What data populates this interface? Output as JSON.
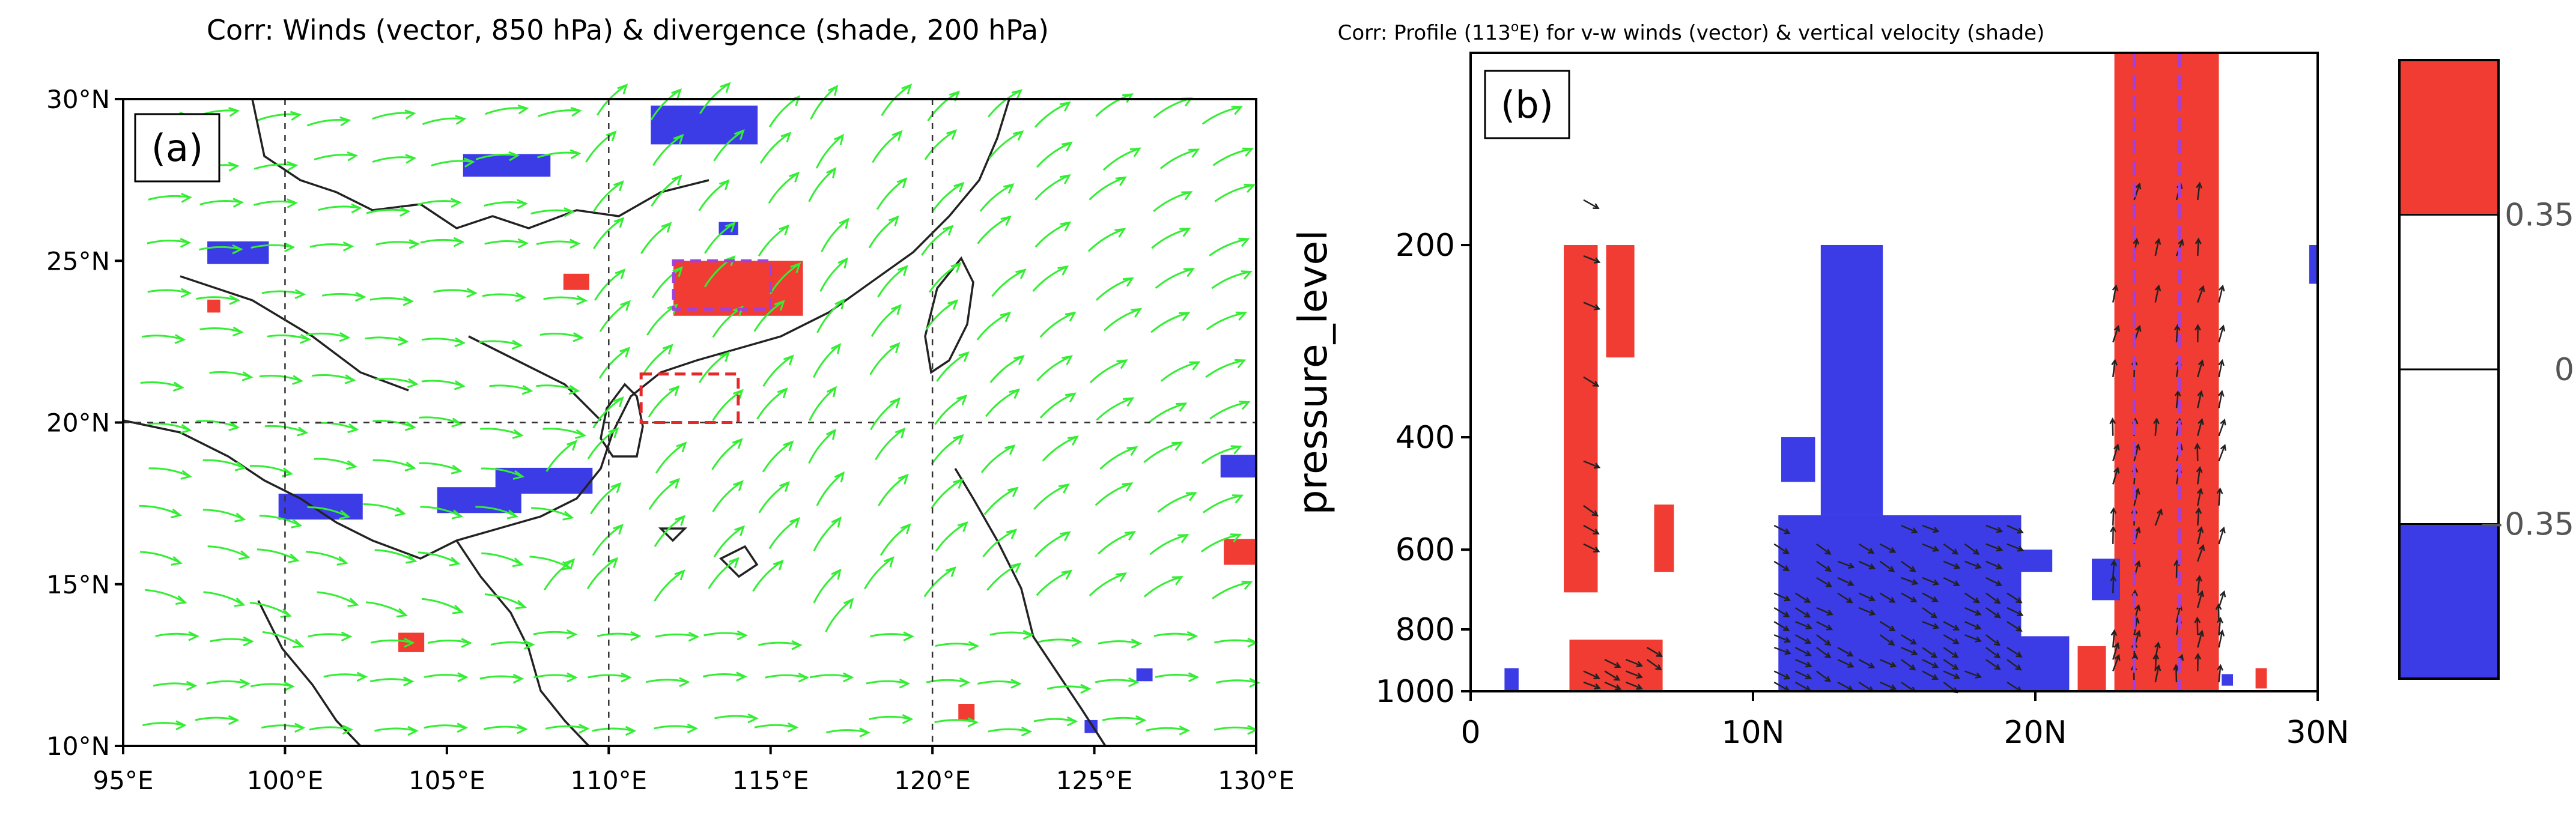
{
  "chart_data": [
    {
      "type": "heatmap",
      "subtype": "map-streamline-overlay",
      "panel_label": "(a)",
      "title": "Corr: Winds (vector, 850 hPa) & divergence (shade, 200 hPa)",
      "x_ticks": [
        "95°E",
        "100°E",
        "105°E",
        "110°E",
        "115°E",
        "120°E",
        "125°E",
        "130°E"
      ],
      "y_ticks": [
        "30°N",
        "25°N",
        "20°N",
        "15°N",
        "10°N"
      ],
      "xlim": [
        95,
        130
      ],
      "ylim": [
        10,
        30
      ],
      "grid_lon": [
        100,
        110,
        120
      ],
      "grid_lat": [
        20
      ],
      "colors": {
        "positive": "#f03c32",
        "negative": "#3c3ce6",
        "streamline": "#33ee33",
        "box_dashed_red": "#e62828",
        "box_dashed_purple": "#a040e0"
      },
      "boxes": [
        {
          "name": "purple-box",
          "lon": [
            112,
            115
          ],
          "lat": [
            23.5,
            25
          ]
        },
        {
          "name": "red-box",
          "lon": [
            111,
            114
          ],
          "lat": [
            20,
            21.5
          ]
        }
      ],
      "positive_patches": [
        {
          "lon": [
            112,
            116
          ],
          "lat": [
            23.3,
            25.0
          ]
        },
        {
          "lon": [
            108.6,
            109.4
          ],
          "lat": [
            24.1,
            24.6
          ]
        },
        {
          "lon": [
            129.0,
            130.0
          ],
          "lat": [
            15.6,
            16.4
          ]
        },
        {
          "lon": [
            103.5,
            104.3
          ],
          "lat": [
            12.9,
            13.5
          ]
        },
        {
          "lon": [
            120.8,
            121.3
          ],
          "lat": [
            10.8,
            11.3
          ]
        },
        {
          "lon": [
            97.6,
            98.0
          ],
          "lat": [
            23.4,
            23.8
          ]
        }
      ],
      "negative_patches": [
        {
          "lon": [
            105.5,
            108.2
          ],
          "lat": [
            27.6,
            28.3
          ]
        },
        {
          "lon": [
            106.5,
            109.5
          ],
          "lat": [
            17.8,
            18.6
          ]
        },
        {
          "lon": [
            104.7,
            107.3
          ],
          "lat": [
            17.2,
            18.0
          ]
        },
        {
          "lon": [
            99.8,
            102.4
          ],
          "lat": [
            17.0,
            17.8
          ]
        },
        {
          "lon": [
            111.3,
            114.6
          ],
          "lat": [
            28.6,
            29.8
          ]
        },
        {
          "lon": [
            97.6,
            99.5
          ],
          "lat": [
            24.9,
            25.6
          ]
        },
        {
          "lon": [
            113.4,
            114.0
          ],
          "lat": [
            25.8,
            26.2
          ]
        },
        {
          "lon": [
            128.9,
            130.0
          ],
          "lat": [
            18.3,
            19.0
          ]
        },
        {
          "lon": [
            126.3,
            126.8
          ],
          "lat": [
            12.0,
            12.4
          ]
        },
        {
          "lon": [
            124.7,
            125.1
          ],
          "lat": [
            10.4,
            10.8
          ]
        }
      ]
    },
    {
      "type": "heatmap",
      "subtype": "vertical-cross-section",
      "panel_label": "(b)",
      "title_prefix": "Corr: Profile (113",
      "title_sup": "o",
      "title_suffix": "E) for v-w winds (vector) & vertical velocity (shade)",
      "ylabel": "pressure_level",
      "x_ticks": [
        "0",
        "10N",
        "20N",
        "30N"
      ],
      "x_values": [
        0,
        10,
        20,
        30
      ],
      "y_ticks": [
        "200",
        "400",
        "600",
        "800",
        "1000"
      ],
      "y_values": [
        200,
        400,
        600,
        800,
        1000
      ],
      "xlim": [
        0,
        30
      ],
      "ylim": [
        1000,
        100
      ],
      "vlines": [
        {
          "name": "purple-dashed-line",
          "lat": 23.5,
          "color": "#a040e0"
        },
        {
          "name": "purple-dashed-line-2",
          "lat": 25.1,
          "color": "#a040e0"
        }
      ],
      "positive_regions": [
        {
          "lat": [
            3.3,
            4.5
          ],
          "p": [
            200,
            700
          ]
        },
        {
          "lat": [
            4.8,
            5.8
          ],
          "p": [
            200,
            300
          ]
        },
        {
          "lat": [
            3.5,
            6.8
          ],
          "p": [
            830,
            1000
          ]
        },
        {
          "lat": [
            6.5,
            7.2
          ],
          "p": [
            510,
            650
          ]
        },
        {
          "lat": [
            22.8,
            26.5
          ],
          "p": [
            100,
            1000
          ]
        },
        {
          "lat": [
            21.5,
            22.5
          ],
          "p": [
            850,
            1000
          ]
        },
        {
          "lat": [
            27.8,
            28.2
          ],
          "p": [
            920,
            990
          ]
        }
      ],
      "negative_regions": [
        {
          "lat": [
            10.9,
            19.5
          ],
          "p": [
            530,
            1000
          ]
        },
        {
          "lat": [
            12.4,
            14.6
          ],
          "p": [
            200,
            530
          ]
        },
        {
          "lat": [
            11.0,
            12.2
          ],
          "p": [
            400,
            470
          ]
        },
        {
          "lat": [
            18.6,
            21.2
          ],
          "p": [
            820,
            1000
          ]
        },
        {
          "lat": [
            19.4,
            20.6
          ],
          "p": [
            600,
            650
          ]
        },
        {
          "lat": [
            1.2,
            1.7
          ],
          "p": [
            920,
            1000
          ]
        },
        {
          "lat": [
            22.0,
            23.0
          ],
          "p": [
            620,
            720
          ]
        },
        {
          "lat": [
            29.7,
            30.0
          ],
          "p": [
            200,
            230
          ]
        },
        {
          "lat": [
            26.6,
            27.0
          ],
          "p": [
            940,
            980
          ]
        }
      ]
    },
    {
      "type": "colorbar",
      "labels": [
        "0.35",
        "0",
        "−0.35"
      ],
      "levels": [
        0.35,
        0,
        -0.35
      ],
      "colors": [
        "#f03c32",
        "#ffffff",
        "#ffffff",
        "#3c3ce6"
      ]
    }
  ]
}
